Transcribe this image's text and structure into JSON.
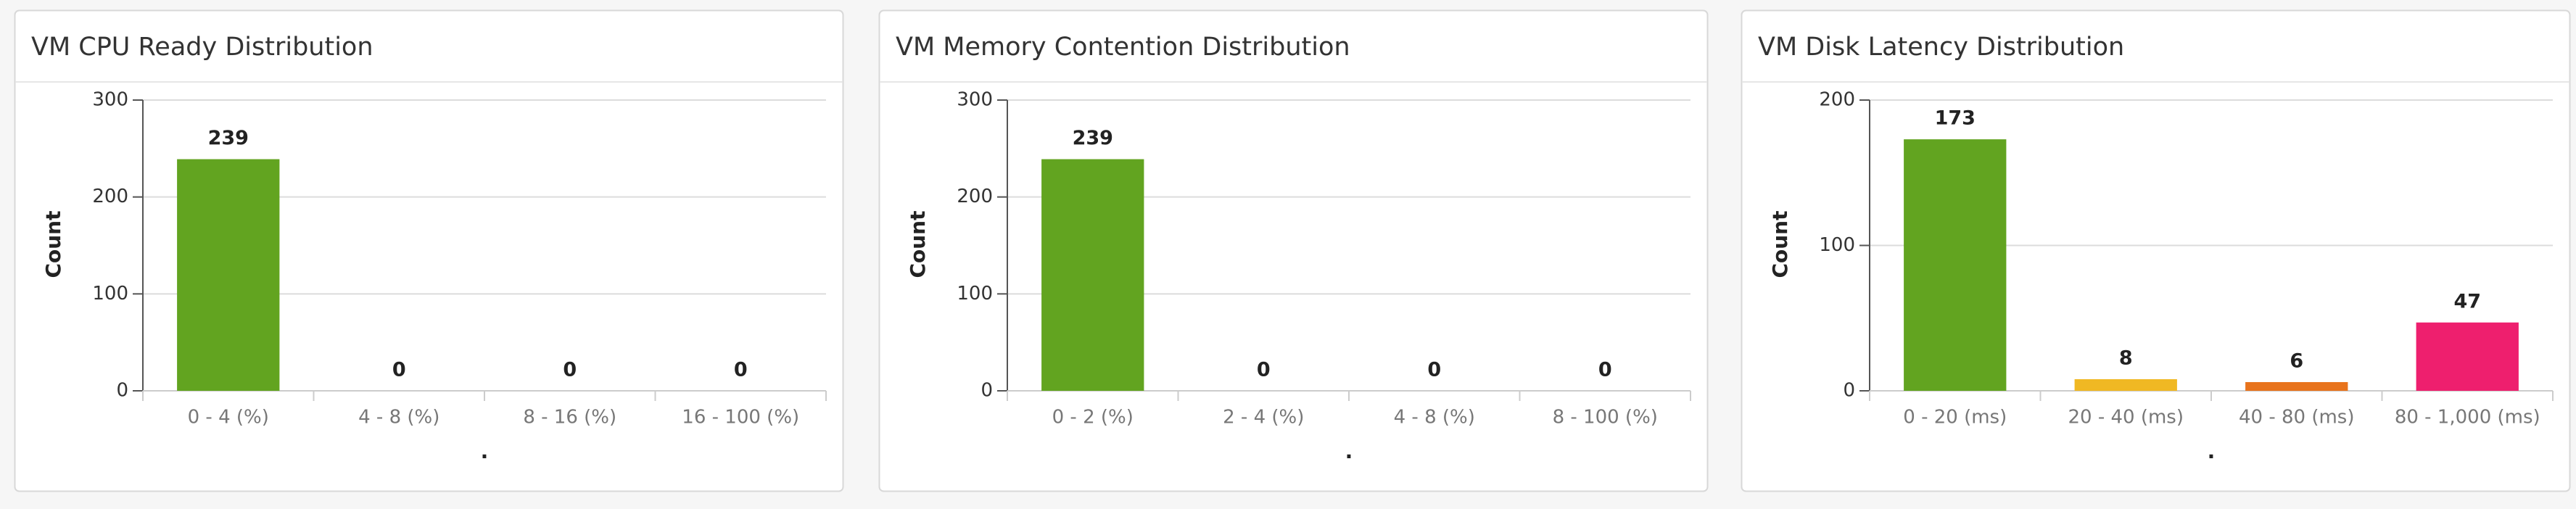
{
  "chart_data": [
    {
      "type": "bar",
      "title": "VM CPU Ready Distribution",
      "x_label": ".",
      "y_label": "Count",
      "categories": [
        "0 - 4 (%)",
        "4 - 8 (%)",
        "8 - 16 (%)",
        "16 - 100 (%)"
      ],
      "values": [
        239,
        0,
        0,
        0
      ],
      "colors": [
        "#62a420",
        "#f0b823",
        "#e8731c",
        "#ee1f6e"
      ],
      "ylim": [
        0,
        300
      ],
      "yticks": [
        0,
        100,
        200,
        300
      ],
      "grid": true
    },
    {
      "type": "bar",
      "title": "VM Memory Contention Distribution",
      "x_label": ".",
      "y_label": "Count",
      "categories": [
        "0 - 2 (%)",
        "2 - 4 (%)",
        "4 - 8 (%)",
        "8 - 100 (%)"
      ],
      "values": [
        239,
        0,
        0,
        0
      ],
      "colors": [
        "#62a420",
        "#f0b823",
        "#e8731c",
        "#ee1f6e"
      ],
      "ylim": [
        0,
        300
      ],
      "yticks": [
        0,
        100,
        200,
        300
      ],
      "grid": true
    },
    {
      "type": "bar",
      "title": "VM Disk Latency Distribution",
      "x_label": ".",
      "y_label": "Count",
      "categories": [
        "0 - 20 (ms)",
        "20 - 40 (ms)",
        "40 - 80 (ms)",
        "80 - 1,000 (ms)"
      ],
      "values": [
        173,
        8,
        6,
        47
      ],
      "colors": [
        "#62a420",
        "#f0b823",
        "#e8731c",
        "#ee1f6e"
      ],
      "ylim": [
        0,
        200
      ],
      "yticks": [
        0,
        100,
        200
      ],
      "grid": true
    }
  ]
}
